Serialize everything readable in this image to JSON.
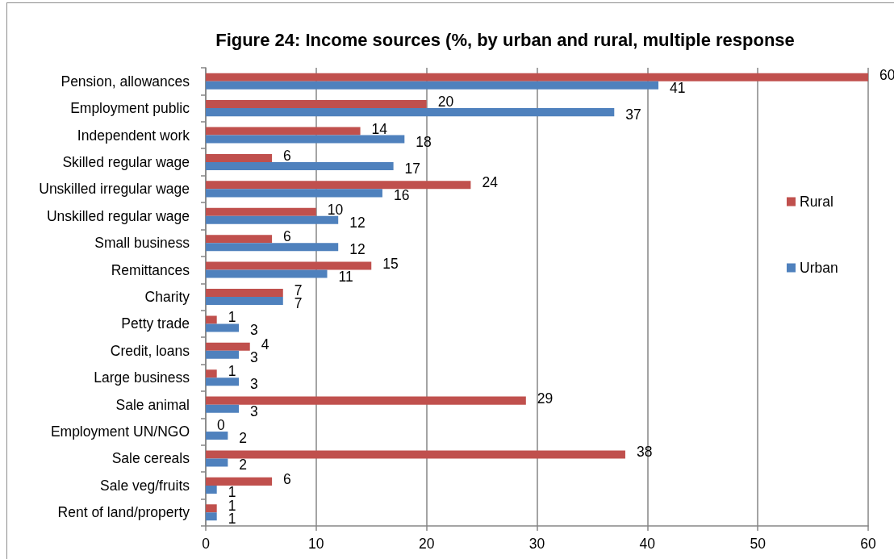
{
  "chart_data": {
    "type": "bar",
    "orientation": "horizontal",
    "title": "Figure 24: Income sources (%, by urban and rural, multiple response",
    "categories": [
      "Pension, allowances",
      "Employment public",
      "Independent work",
      "Skilled regular wage",
      "Unskilled irregular wage",
      "Unskilled regular wage",
      "Small business",
      "Remittances",
      "Charity",
      "Petty trade",
      "Credit, loans",
      "Large business",
      "Sale animal",
      "Employment UN/NGO",
      "Sale cereals",
      "Sale veg/fruits",
      "Rent of land/property"
    ],
    "series": [
      {
        "name": "Rural",
        "color": "#c0504d",
        "values": [
          60,
          20,
          14,
          6,
          24,
          10,
          6,
          15,
          7,
          1,
          4,
          1,
          29,
          0,
          38,
          6,
          1
        ]
      },
      {
        "name": "Urban",
        "color": "#4f81bd",
        "values": [
          41,
          37,
          18,
          17,
          16,
          12,
          12,
          11,
          7,
          3,
          3,
          3,
          3,
          2,
          2,
          1,
          1
        ]
      }
    ],
    "xlim": [
      0,
      60
    ],
    "xticks": [
      0,
      10,
      20,
      30,
      40,
      50,
      60
    ],
    "data_labels": true,
    "grid": "x",
    "legend": "right"
  }
}
